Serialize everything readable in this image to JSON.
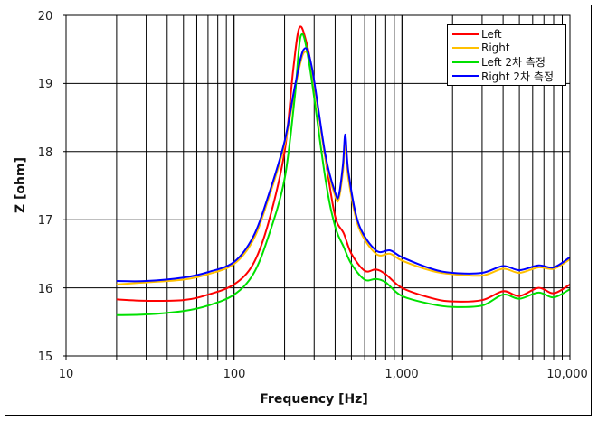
{
  "chart_data": {
    "type": "line",
    "title": "",
    "xlabel": "Frequency [Hz]",
    "ylabel": "Z [ohm]",
    "xscale": "log",
    "xlim": [
      10,
      10000
    ],
    "ylim": [
      15,
      20
    ],
    "x_tick_labels": [
      "10",
      "100",
      "1,000",
      "10,000"
    ],
    "y_tick_labels": [
      "15",
      "16",
      "17",
      "18",
      "19",
      "20"
    ],
    "grid": true,
    "legend_position": "upper right",
    "series": [
      {
        "name": "Left",
        "color": "#ff0000",
        "points": [
          [
            20,
            15.83
          ],
          [
            30,
            15.81
          ],
          [
            50,
            15.82
          ],
          [
            70,
            15.9
          ],
          [
            100,
            16.05
          ],
          [
            130,
            16.35
          ],
          [
            160,
            16.95
          ],
          [
            200,
            18.0
          ],
          [
            225,
            19.2
          ],
          [
            245,
            19.82
          ],
          [
            270,
            19.6
          ],
          [
            300,
            19.0
          ],
          [
            350,
            17.9
          ],
          [
            400,
            17.05
          ],
          [
            450,
            16.8
          ],
          [
            500,
            16.5
          ],
          [
            600,
            16.25
          ],
          [
            700,
            16.27
          ],
          [
            800,
            16.2
          ],
          [
            1000,
            16.0
          ],
          [
            1500,
            15.85
          ],
          [
            2000,
            15.8
          ],
          [
            3000,
            15.82
          ],
          [
            4000,
            15.95
          ],
          [
            5000,
            15.88
          ],
          [
            6500,
            16.0
          ],
          [
            8000,
            15.92
          ],
          [
            10000,
            16.05
          ]
        ]
      },
      {
        "name": "Right",
        "color": "#ffc000",
        "points": [
          [
            20,
            16.05
          ],
          [
            30,
            16.08
          ],
          [
            50,
            16.12
          ],
          [
            70,
            16.2
          ],
          [
            100,
            16.35
          ],
          [
            130,
            16.7
          ],
          [
            160,
            17.3
          ],
          [
            200,
            18.1
          ],
          [
            230,
            18.9
          ],
          [
            260,
            19.45
          ],
          [
            290,
            19.2
          ],
          [
            350,
            17.9
          ],
          [
            400,
            17.35
          ],
          [
            420,
            17.3
          ],
          [
            445,
            17.7
          ],
          [
            460,
            18.1
          ],
          [
            480,
            17.6
          ],
          [
            550,
            16.9
          ],
          [
            700,
            16.5
          ],
          [
            850,
            16.5
          ],
          [
            1000,
            16.4
          ],
          [
            1500,
            16.25
          ],
          [
            2000,
            16.2
          ],
          [
            3000,
            16.18
          ],
          [
            4000,
            16.28
          ],
          [
            5000,
            16.22
          ],
          [
            6500,
            16.3
          ],
          [
            8000,
            16.28
          ],
          [
            10000,
            16.42
          ]
        ]
      },
      {
        "name": "Left 2차 측정",
        "color": "#00e000",
        "points": [
          [
            20,
            15.6
          ],
          [
            30,
            15.61
          ],
          [
            50,
            15.66
          ],
          [
            70,
            15.74
          ],
          [
            100,
            15.9
          ],
          [
            130,
            16.2
          ],
          [
            160,
            16.75
          ],
          [
            200,
            17.6
          ],
          [
            230,
            18.8
          ],
          [
            250,
            19.7
          ],
          [
            280,
            19.3
          ],
          [
            350,
            17.6
          ],
          [
            400,
            16.9
          ],
          [
            450,
            16.6
          ],
          [
            500,
            16.35
          ],
          [
            600,
            16.12
          ],
          [
            700,
            16.13
          ],
          [
            800,
            16.08
          ],
          [
            1000,
            15.88
          ],
          [
            1500,
            15.76
          ],
          [
            2000,
            15.72
          ],
          [
            3000,
            15.74
          ],
          [
            4000,
            15.9
          ],
          [
            5000,
            15.84
          ],
          [
            6500,
            15.93
          ],
          [
            8000,
            15.86
          ],
          [
            10000,
            15.98
          ]
        ]
      },
      {
        "name": "Right 2차 측정",
        "color": "#0000ff",
        "points": [
          [
            20,
            16.1
          ],
          [
            30,
            16.1
          ],
          [
            50,
            16.15
          ],
          [
            70,
            16.23
          ],
          [
            100,
            16.38
          ],
          [
            130,
            16.75
          ],
          [
            160,
            17.35
          ],
          [
            200,
            18.15
          ],
          [
            230,
            18.95
          ],
          [
            260,
            19.5
          ],
          [
            290,
            19.25
          ],
          [
            350,
            17.95
          ],
          [
            400,
            17.4
          ],
          [
            420,
            17.35
          ],
          [
            445,
            17.8
          ],
          [
            460,
            18.25
          ],
          [
            480,
            17.7
          ],
          [
            550,
            16.95
          ],
          [
            700,
            16.55
          ],
          [
            850,
            16.55
          ],
          [
            1000,
            16.45
          ],
          [
            1500,
            16.28
          ],
          [
            2000,
            16.22
          ],
          [
            3000,
            16.22
          ],
          [
            4000,
            16.32
          ],
          [
            5000,
            16.26
          ],
          [
            6500,
            16.33
          ],
          [
            8000,
            16.3
          ],
          [
            10000,
            16.45
          ]
        ]
      }
    ]
  },
  "legend": {
    "items": [
      {
        "label": "Left",
        "color": "#ff0000"
      },
      {
        "label": "Right",
        "color": "#ffc000"
      },
      {
        "label": "Left 2차 측정",
        "color": "#00e000"
      },
      {
        "label": "Right 2차 측정",
        "color": "#0000ff"
      }
    ]
  },
  "axes": {
    "x_title": "Frequency [Hz]",
    "y_title": "Z [ohm]",
    "x_ticks": [
      "10",
      "100",
      "1,000",
      "10,000"
    ],
    "y_ticks": [
      "20",
      "19",
      "18",
      "17",
      "16",
      "15"
    ]
  }
}
